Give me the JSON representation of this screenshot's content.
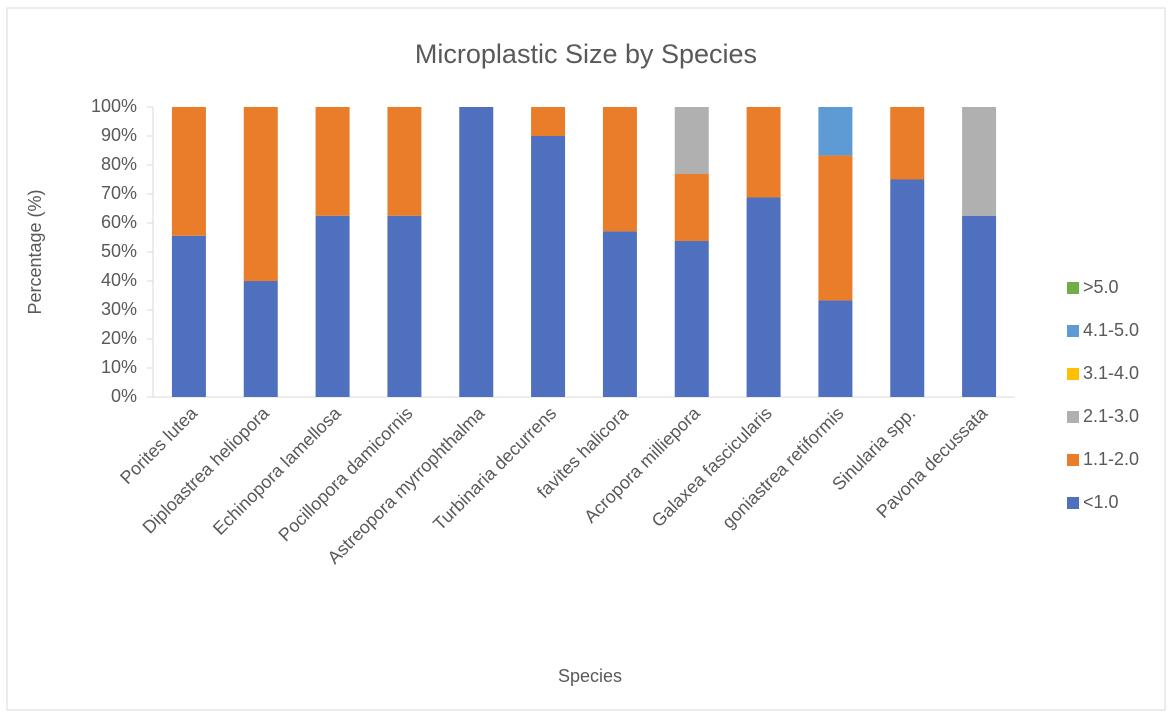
{
  "chart_data": {
    "type": "stacked_bar",
    "title": "Microplastic Size by Species",
    "x_label": "Species",
    "y_label": "Percentage (%)",
    "categories": [
      "Porites lutea",
      "Diploastrea heliopora",
      "Echinopora lamellosa",
      "Pocillopora damicornis",
      "Astreopora myrrophthalma",
      "Turbinaria decurrens",
      "favites halicora",
      "Acropora milliepora",
      "Galaxea fascicularis",
      "goniastrea retiformis",
      "Sinularia spp.",
      "Pavona decussata"
    ],
    "series": [
      {
        "name": "<1.0",
        "color": "#4e70be",
        "values": [
          55.6,
          40,
          62.5,
          62.5,
          100,
          90,
          57.1,
          53.8,
          68.8,
          33.3,
          75,
          62.5
        ]
      },
      {
        "name": "1.1-2.0",
        "color": "#e97d2a",
        "values": [
          44.4,
          60,
          37.5,
          37.5,
          0,
          10,
          42.9,
          23.1,
          31.2,
          50,
          25,
          0
        ]
      },
      {
        "name": "2.1-3.0",
        "color": "#b0b0b0",
        "values": [
          0,
          0,
          0,
          0,
          0,
          0,
          0,
          23.1,
          0,
          0,
          0,
          37.5
        ]
      },
      {
        "name": "3.1-4.0",
        "color": "#ffc000",
        "values": [
          0,
          0,
          0,
          0,
          0,
          0,
          0,
          0,
          0,
          0,
          0,
          0
        ]
      },
      {
        "name": "4.1-5.0",
        "color": "#5e9bd4",
        "values": [
          0,
          0,
          0,
          0,
          0,
          0,
          0,
          0,
          0,
          16.7,
          0,
          0
        ]
      },
      {
        "name": ">5.0",
        "color": "#70ad47",
        "values": [
          0,
          0,
          0,
          0,
          0,
          0,
          0,
          0,
          0,
          0,
          0,
          0
        ]
      }
    ],
    "ylim": [
      0,
      100
    ],
    "yticks": [
      {
        "value": 0,
        "label": "0%"
      },
      {
        "value": 10,
        "label": "10%"
      },
      {
        "value": 20,
        "label": "20%"
      },
      {
        "value": 30,
        "label": "30%"
      },
      {
        "value": 40,
        "label": "40%"
      },
      {
        "value": 50,
        "label": "50%"
      },
      {
        "value": 60,
        "label": "60%"
      },
      {
        "value": 70,
        "label": "70%"
      },
      {
        "value": 80,
        "label": "80%"
      },
      {
        "value": 90,
        "label": "90%"
      },
      {
        "value": 100,
        "label": "100%"
      }
    ],
    "legend": "right"
  }
}
